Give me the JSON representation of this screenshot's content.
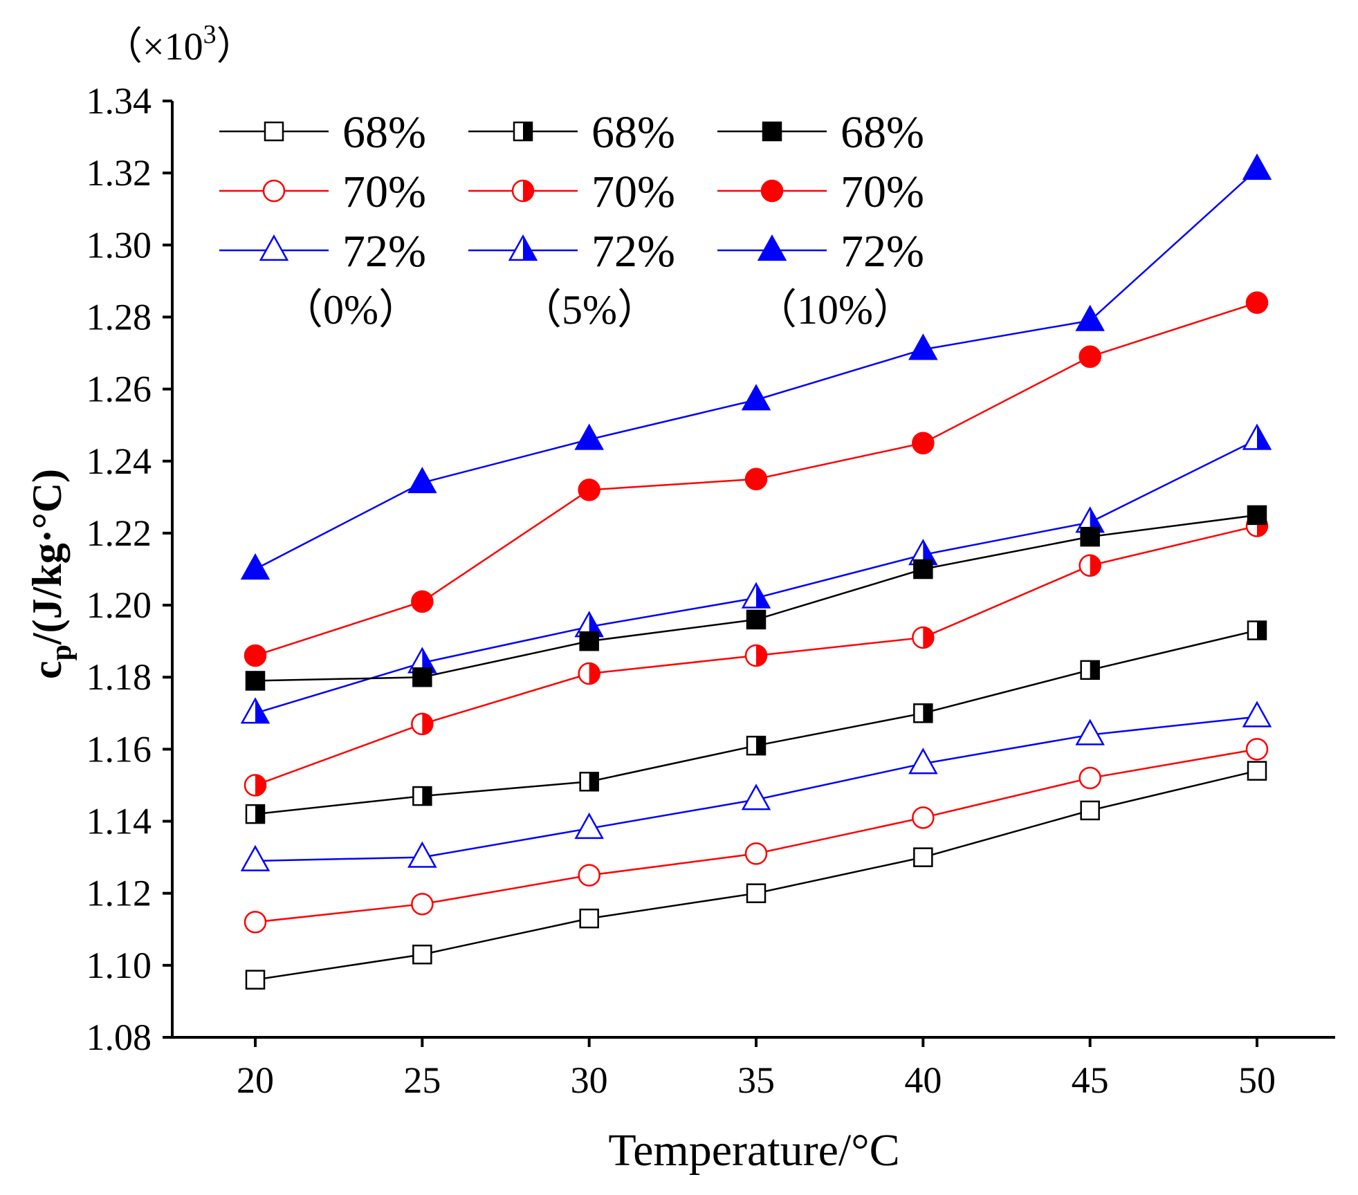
{
  "chart_data": {
    "type": "line",
    "multiplier_label": "（×10",
    "multiplier_exponent": "3",
    "multiplier_close": "）",
    "xlabel": "Temperature/°C",
    "ylabel_main": "c",
    "ylabel_sub": "p",
    "ylabel_rest": "/(J/kg·°C)",
    "x": [
      20,
      25,
      30,
      35,
      40,
      45,
      50
    ],
    "xticks": [
      "20",
      "25",
      "30",
      "35",
      "40",
      "45",
      "50"
    ],
    "ylim": [
      1.08,
      1.34
    ],
    "yticks": [
      "1.08",
      "1.10",
      "1.12",
      "1.14",
      "1.16",
      "1.18",
      "1.20",
      "1.22",
      "1.24",
      "1.26",
      "1.28",
      "1.30",
      "1.32",
      "1.34"
    ],
    "legend_placement": "top-left",
    "groups": [
      "（0%）",
      "（5%）",
      "（10%）"
    ],
    "colors": {
      "68%": "#000000",
      "70%": "#ff0000",
      "72%": "#0000ff"
    },
    "series": [
      {
        "name": "68%",
        "group": "（0%）",
        "marker": "square",
        "fill": "open",
        "color": "#000000",
        "values": [
          1.096,
          1.103,
          1.113,
          1.12,
          1.13,
          1.143,
          1.154
        ]
      },
      {
        "name": "70%",
        "group": "（0%）",
        "marker": "circle",
        "fill": "open",
        "color": "#ff0000",
        "values": [
          1.112,
          1.117,
          1.125,
          1.131,
          1.141,
          1.152,
          1.16
        ]
      },
      {
        "name": "72%",
        "group": "（0%）",
        "marker": "triangle",
        "fill": "open",
        "color": "#0000ff",
        "values": [
          1.129,
          1.13,
          1.138,
          1.146,
          1.156,
          1.164,
          1.169
        ]
      },
      {
        "name": "68%",
        "group": "（5%）",
        "marker": "square",
        "fill": "half",
        "color": "#000000",
        "values": [
          1.142,
          1.147,
          1.151,
          1.161,
          1.17,
          1.182,
          1.193
        ]
      },
      {
        "name": "70%",
        "group": "（5%）",
        "marker": "circle",
        "fill": "half",
        "color": "#ff0000",
        "values": [
          1.15,
          1.167,
          1.181,
          1.186,
          1.191,
          1.211,
          1.222
        ]
      },
      {
        "name": "72%",
        "group": "（5%）",
        "marker": "triangle",
        "fill": "half",
        "color": "#0000ff",
        "values": [
          1.17,
          1.184,
          1.194,
          1.202,
          1.214,
          1.223,
          1.246
        ]
      },
      {
        "name": "68%",
        "group": "（10%）",
        "marker": "square",
        "fill": "solid",
        "color": "#000000",
        "values": [
          1.179,
          1.18,
          1.19,
          1.196,
          1.21,
          1.219,
          1.225
        ]
      },
      {
        "name": "70%",
        "group": "（10%）",
        "marker": "circle",
        "fill": "solid",
        "color": "#ff0000",
        "values": [
          1.186,
          1.201,
          1.232,
          1.235,
          1.245,
          1.269,
          1.284
        ]
      },
      {
        "name": "72%",
        "group": "（10%）",
        "marker": "triangle",
        "fill": "solid",
        "color": "#0000ff",
        "values": [
          1.21,
          1.234,
          1.246,
          1.257,
          1.271,
          1.279,
          1.321
        ]
      }
    ]
  }
}
